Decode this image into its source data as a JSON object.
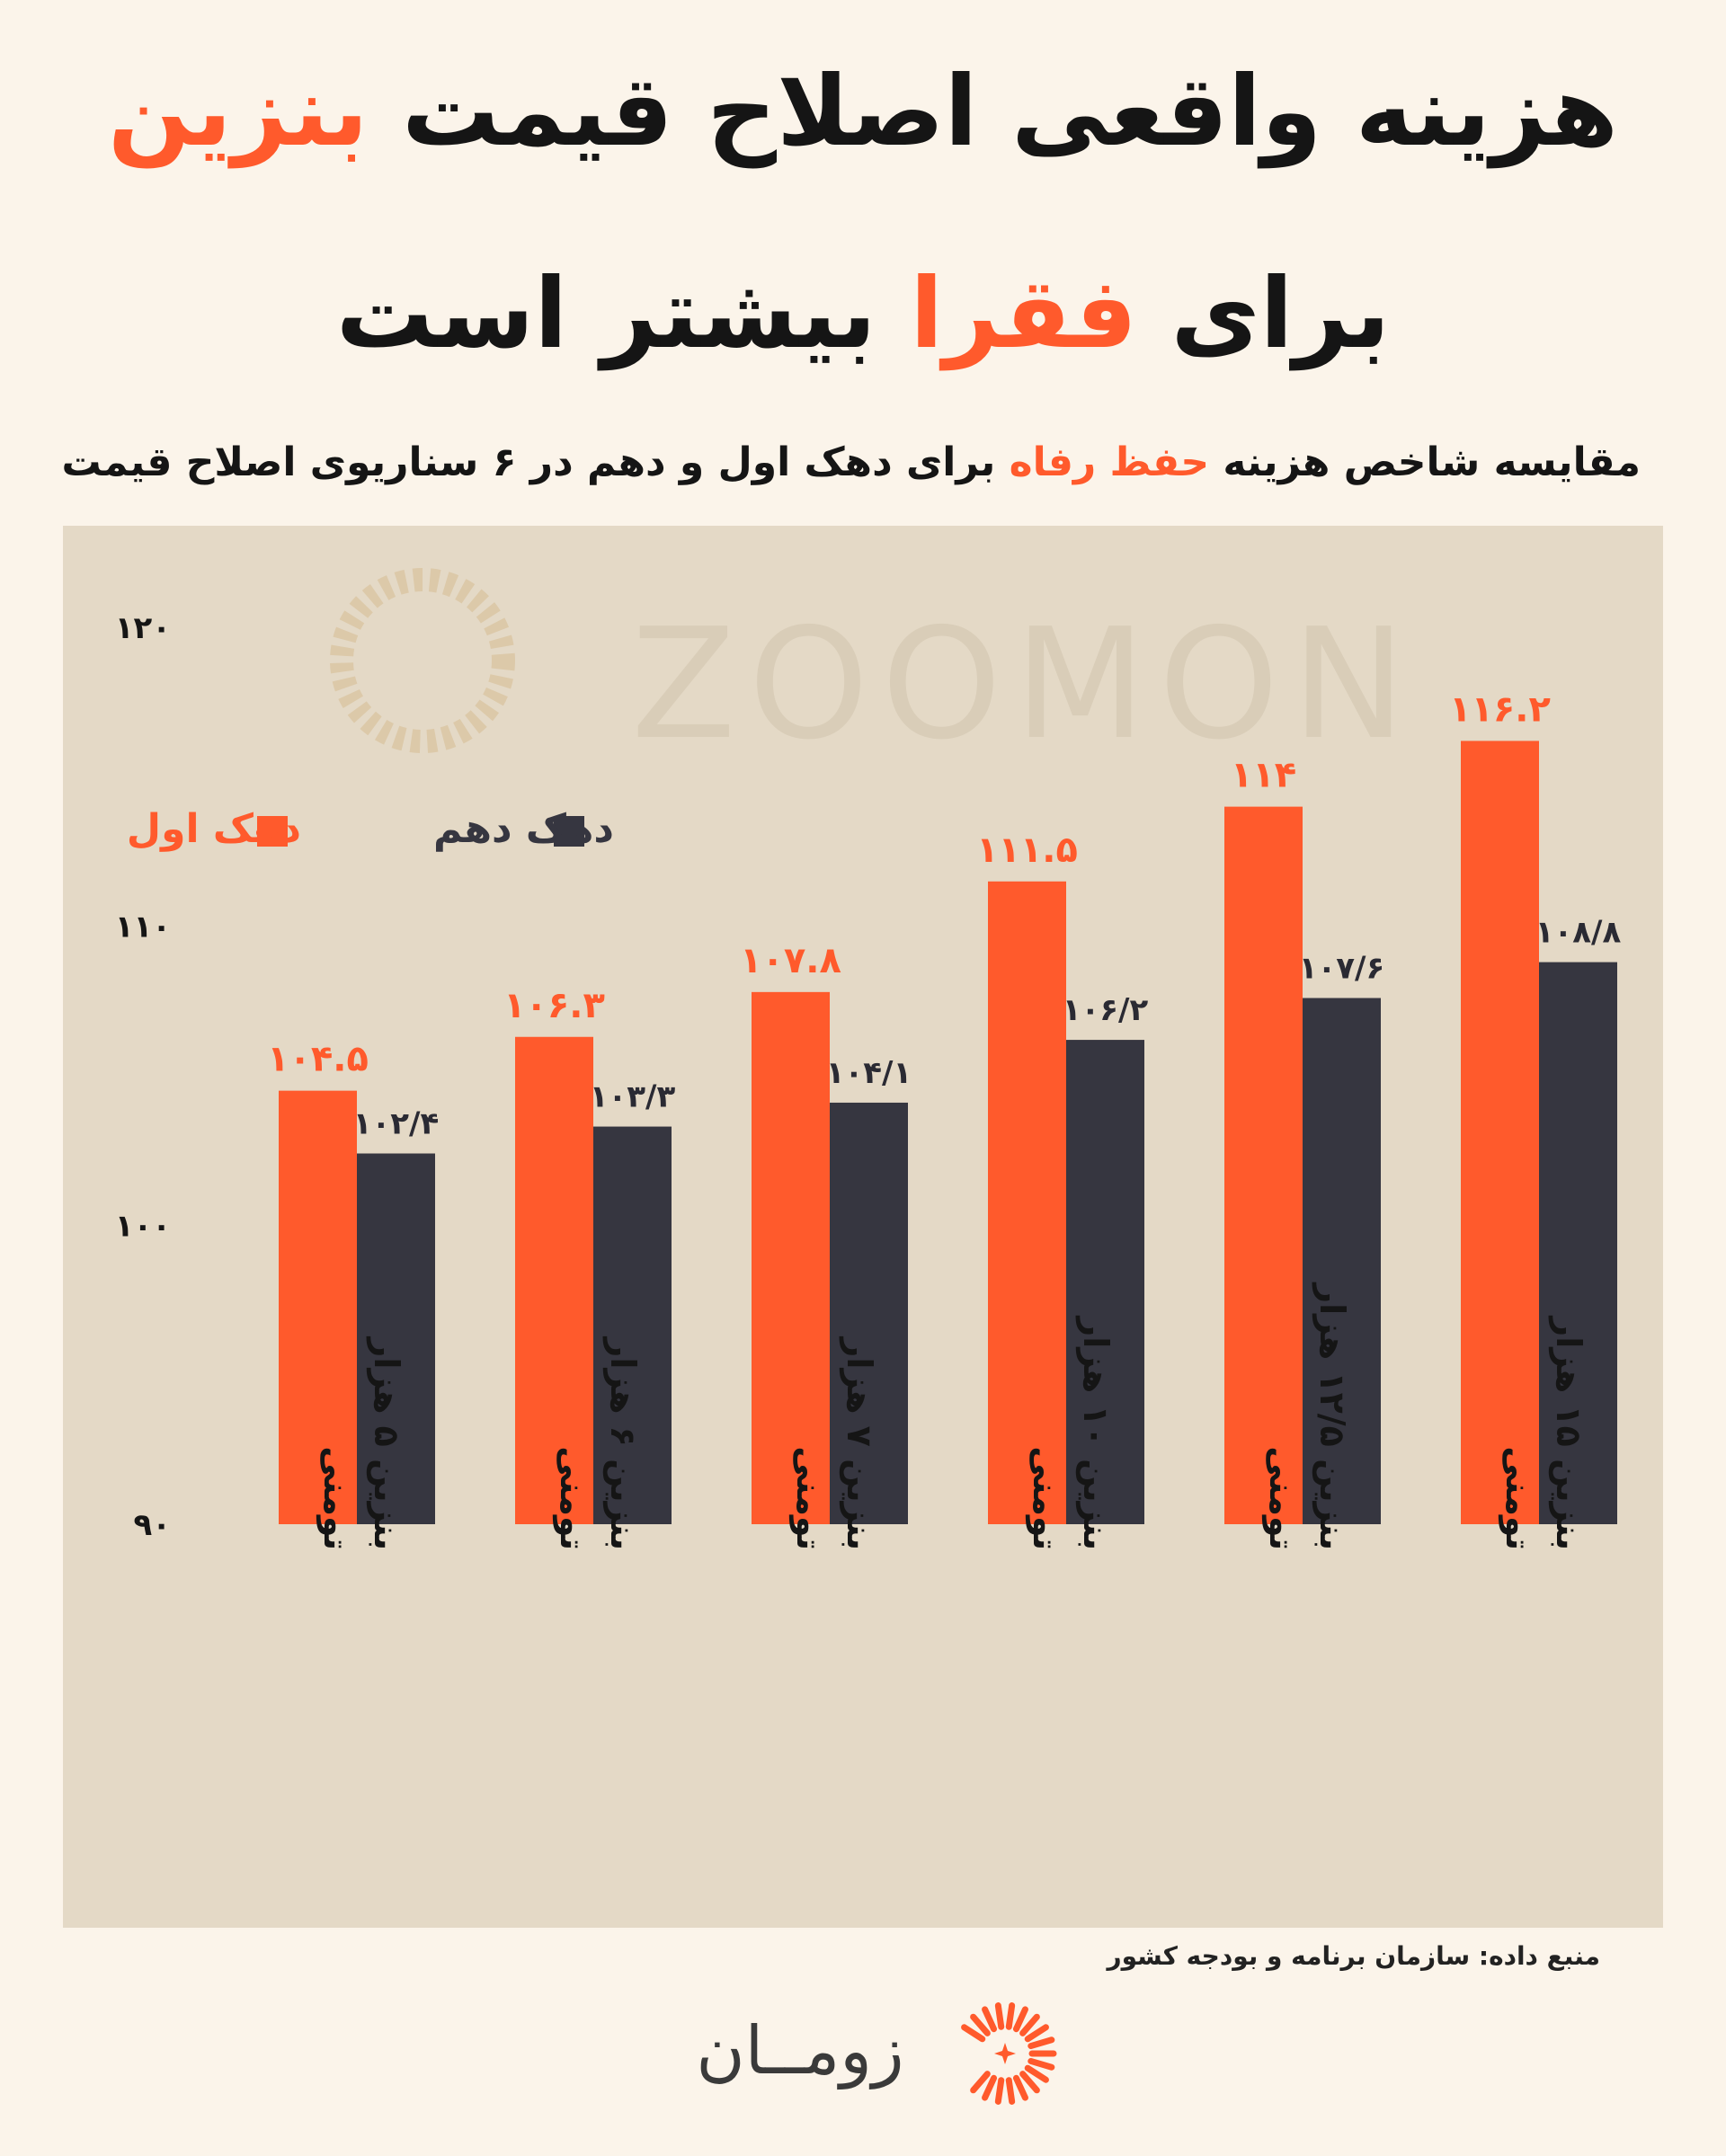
{
  "title": {
    "line1_main": "هزینه واقعی اصلاح قیمت",
    "line1_accent": "بنزین",
    "line2_main_start": "برای",
    "line2_accent": "فقرا",
    "line2_main_end": "بیشتر است"
  },
  "subtitle": {
    "part1": "مقایسه شاخص هزینه",
    "accent": "حفظ رفاه",
    "part2": "برای دهک اول و دهم در ۶ سناریوی اصلاح قیمت"
  },
  "watermark": "ZOOMON",
  "source": "منبع داده: سازمان برنامه و بودجه کشور",
  "brand": {
    "name": "زومــان",
    "logo_icon": "sunburst-icon"
  },
  "colors": {
    "accent": "#ff5a2c",
    "dark_series": "#363640",
    "panel": "#e4d9c6",
    "background": "#fbf4ea"
  },
  "chart_data": {
    "type": "bar",
    "ylim": [
      90,
      120
    ],
    "yticks": [
      {
        "value": 90,
        "label": "۹۰"
      },
      {
        "value": 100,
        "label": "۱۰۰"
      },
      {
        "value": 110,
        "label": "۱۱۰"
      },
      {
        "value": 120,
        "label": "۱۲۰"
      }
    ],
    "categories": [
      {
        "lines": [
          "بنزین ۵ هزار",
          "تومنی"
        ]
      },
      {
        "lines": [
          "بنزین ۶ هزار",
          "تومنی"
        ]
      },
      {
        "lines": [
          "بنزین ۷ هزار",
          "تومنی"
        ]
      },
      {
        "lines": [
          "بنزین ۱۰ هزار",
          "تومنی"
        ]
      },
      {
        "lines": [
          "بنزین ۱۲/۵ هزار",
          "تومنی"
        ]
      },
      {
        "lines": [
          "بنزین ۱۵ هزار",
          "تومنی"
        ]
      }
    ],
    "series": [
      {
        "name": "دهک اول",
        "color": "#ff5a2c",
        "values": [
          104.5,
          106.3,
          107.8,
          111.5,
          114,
          116.2
        ],
        "labels": [
          "۱۰۴.۵",
          "۱۰۶.۳",
          "۱۰۷.۸",
          "۱۱۱.۵",
          "۱۱۴",
          "۱۱۶.۲"
        ]
      },
      {
        "name": "دهک دهم",
        "color": "#363640",
        "values": [
          102.4,
          103.3,
          104.1,
          106.2,
          107.6,
          108.8
        ],
        "labels": [
          "۱۰۲/۴",
          "۱۰۳/۳",
          "۱۰۴/۱",
          "۱۰۶/۲",
          "۱۰۷/۶",
          "۱۰۸/۸"
        ]
      }
    ],
    "legend": "top-left"
  }
}
